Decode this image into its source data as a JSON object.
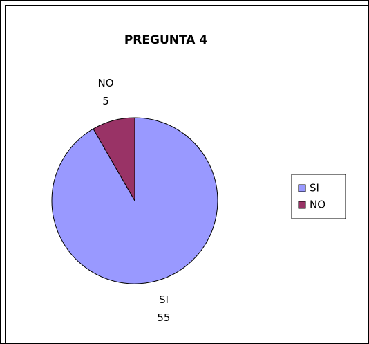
{
  "chart_data": {
    "type": "pie",
    "title": "PREGUNTA 4",
    "categories": [
      "SI",
      "NO"
    ],
    "values": [
      55,
      5
    ],
    "colors": [
      "#9999ff",
      "#993366"
    ],
    "legend": "right"
  }
}
